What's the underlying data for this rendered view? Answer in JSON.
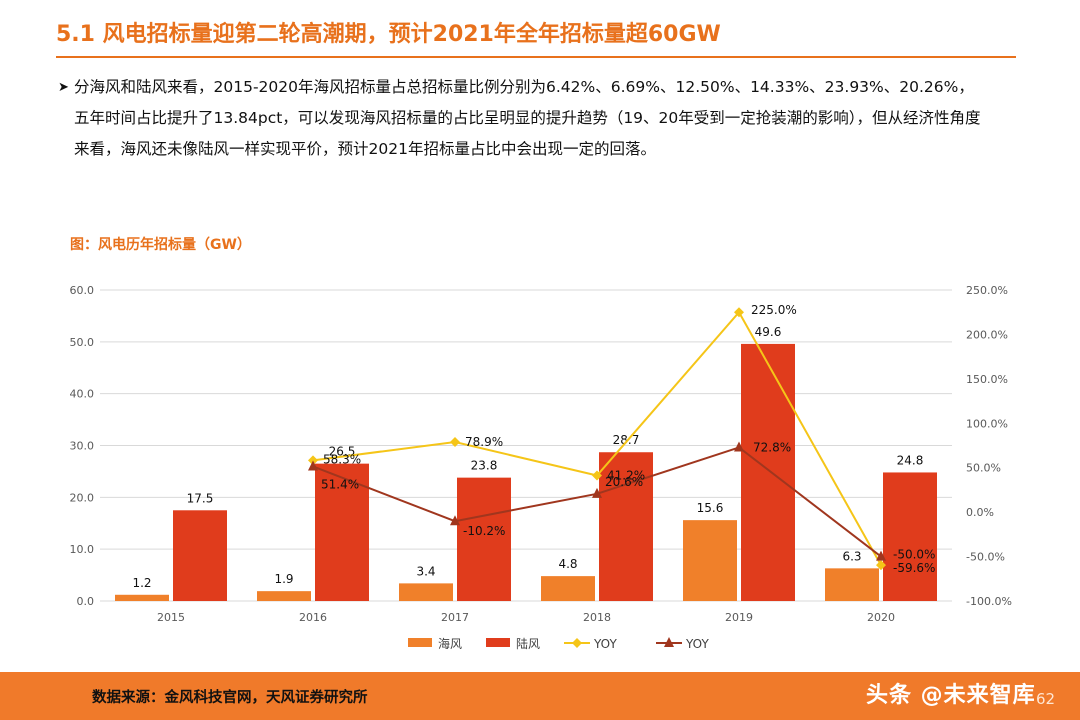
{
  "header": {
    "title": "5.1 风电招标量迎第二轮高潮期，预计2021年全年招标量超60GW"
  },
  "bullet": {
    "text": "分海风和陆风来看，2015-2020年海风招标量占总招标量比例分别为6.42%、6.69%、12.50%、14.33%、23.93%、20.26%，五年时间占比提升了13.84pct，可以发现海风招标量的占比呈明显的提升趋势（19、20年受到一定抢装潮的影响），但从经济性角度来看，海风还未像陆风一样实现平价，预计2021年招标量占比中会出现一定的回落。"
  },
  "figure": {
    "caption": "图：风电历年招标量（GW）"
  },
  "chart_data": {
    "type": "bar",
    "title": "图：风电历年招标量（GW）",
    "categories": [
      "2015",
      "2016",
      "2017",
      "2018",
      "2019",
      "2020"
    ],
    "series": [
      {
        "name": "海风",
        "kind": "bar",
        "axis": "left",
        "color": "#f0802a",
        "values": [
          1.2,
          1.9,
          3.4,
          4.8,
          15.6,
          6.3
        ],
        "labels": [
          "1.2",
          "1.9",
          "3.4",
          "4.8",
          "15.6",
          "6.3"
        ]
      },
      {
        "name": "陆风",
        "kind": "bar",
        "axis": "left",
        "color": "#e03c1c",
        "values": [
          17.5,
          26.5,
          23.8,
          28.7,
          49.6,
          24.8
        ],
        "labels": [
          "17.5",
          "26.5",
          "23.8",
          "28.7",
          "49.6",
          "24.8"
        ]
      },
      {
        "name": "YOY",
        "kind": "line",
        "axis": "right",
        "color": "#f5c518",
        "marker": "diamond",
        "values": [
          null,
          58.3,
          78.9,
          41.2,
          225.0,
          -59.6
        ],
        "labels": [
          null,
          "58.3%",
          "78.9%",
          "41.2%",
          "225.0%",
          "-59.6%"
        ]
      },
      {
        "name": "YOY",
        "kind": "line",
        "axis": "right",
        "color": "#a0361e",
        "marker": "triangle",
        "values": [
          null,
          51.4,
          -10.2,
          20.6,
          72.8,
          -50.0
        ],
        "labels": [
          null,
          "51.4%",
          "-10.2%",
          "20.6%",
          "72.8%",
          "-50.0%"
        ]
      }
    ],
    "y_left": {
      "min": 0,
      "max": 60,
      "ticks": [
        "0.0",
        "10.0",
        "20.0",
        "30.0",
        "40.0",
        "50.0",
        "60.0"
      ]
    },
    "y_right": {
      "min": -100,
      "max": 250,
      "ticks": [
        "-100.0%",
        "-50.0%",
        "0.0%",
        "50.0%",
        "100.0%",
        "150.0%",
        "200.0%",
        "250.0%"
      ]
    },
    "legend_position": "bottom",
    "grid": true
  },
  "footer": {
    "source": "数据来源：金风科技官网，天风证券研究所",
    "watermark": "头条 @未来智库",
    "page_number": "62"
  }
}
